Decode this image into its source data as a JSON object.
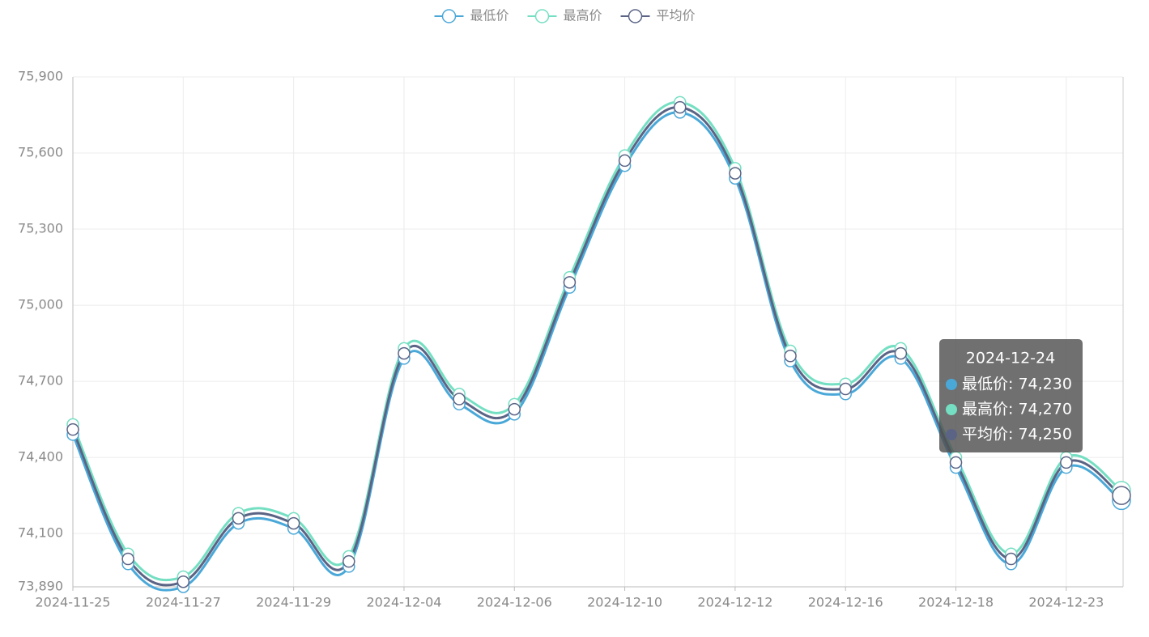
{
  "chart_data": {
    "type": "line",
    "smooth": true,
    "grid": true,
    "legend": "top",
    "categories": [
      "2024-11-25",
      null,
      "2024-11-27",
      null,
      "2024-11-29",
      null,
      "2024-12-04",
      null,
      "2024-12-06",
      null,
      "2024-12-10",
      null,
      "2024-12-12",
      null,
      "2024-12-16",
      null,
      "2024-12-18",
      null,
      "2024-12-23",
      null
    ],
    "series": [
      {
        "name": "最低价",
        "color": "#4aa8d8",
        "values": [
          74490,
          73980,
          73890,
          74140,
          74120,
          73970,
          74790,
          74610,
          74570,
          75070,
          75550,
          75760,
          75500,
          74780,
          74650,
          74790,
          74360,
          73980,
          74360,
          74230
        ]
      },
      {
        "name": "最高价",
        "color": "#74dfc2",
        "values": [
          74530,
          74020,
          73930,
          74180,
          74160,
          74010,
          74830,
          74650,
          74610,
          75110,
          75590,
          75800,
          75540,
          74820,
          74690,
          74830,
          74400,
          74020,
          74400,
          74270
        ]
      },
      {
        "name": "平均价",
        "color": "#5b6485",
        "values": [
          74510,
          74000,
          73910,
          74160,
          74140,
          73990,
          74810,
          74630,
          74590,
          75090,
          75570,
          75780,
          75520,
          74800,
          74670,
          74810,
          74380,
          74000,
          74380,
          74250
        ]
      }
    ],
    "ylim": [
      73890,
      75900
    ],
    "yticks": [
      {
        "value": 73890,
        "label": "73,890"
      },
      {
        "value": 74100,
        "label": "74,100"
      },
      {
        "value": 74400,
        "label": "74,400"
      },
      {
        "value": 74700,
        "label": "74,700"
      },
      {
        "value": 75000,
        "label": "75,000"
      },
      {
        "value": 75300,
        "label": "75,300"
      },
      {
        "value": 75600,
        "label": "75,600"
      },
      {
        "value": 75900,
        "label": "75,900"
      }
    ],
    "tooltip": {
      "title": "2024-12-24",
      "items": [
        "最低价: 74,230",
        "最高价: 74,270",
        "平均价: 74,250"
      ]
    }
  }
}
